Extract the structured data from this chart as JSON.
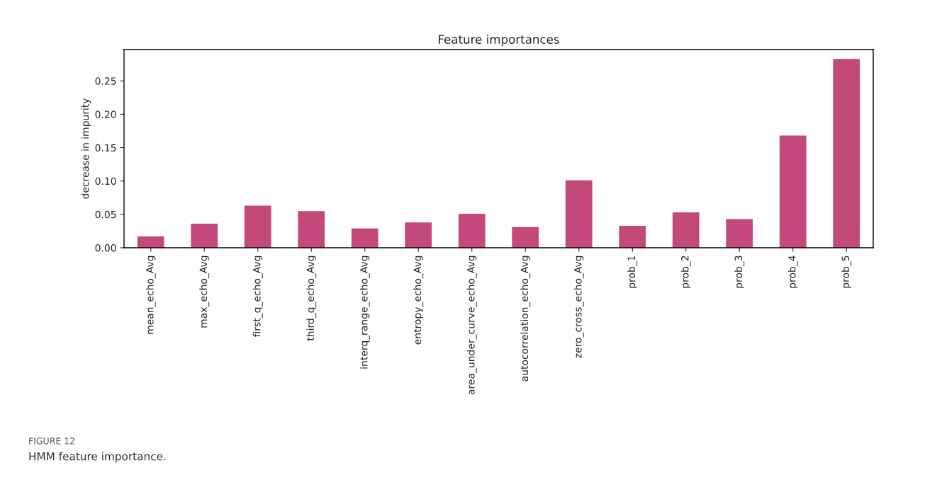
{
  "chart_data": {
    "type": "bar",
    "title": "Feature importances",
    "ylabel": "decrease in impurity",
    "categories": [
      "mean_echo_Avg",
      "max_echo_Avg",
      "first_q_echo_Avg",
      "third_q_echo_Avg",
      "interq_range_echo_Avg",
      "entropy_echo_Avg",
      "area_under_curve_echo_Avg",
      "autocorrelation_echo_Avg",
      "zero_cross_echo_Avg",
      "prob_1",
      "prob_2",
      "prob_3",
      "prob_4",
      "prob_5"
    ],
    "values": [
      0.017,
      0.036,
      0.063,
      0.055,
      0.029,
      0.038,
      0.051,
      0.031,
      0.101,
      0.033,
      0.053,
      0.043,
      0.168,
      0.283
    ],
    "color": "#c2497a",
    "ylim": [
      0,
      0.297
    ],
    "yticks": [
      {
        "value": 0,
        "label": "0.00"
      },
      {
        "value": 0.05,
        "label": "0.05"
      },
      {
        "value": 0.1,
        "label": "0.10"
      },
      {
        "value": 0.15,
        "label": "0.15"
      },
      {
        "value": 0.2,
        "label": "0.20"
      },
      {
        "value": 0.25,
        "label": "0.25"
      }
    ],
    "grid": false,
    "legend": false,
    "annotations": [
      "FIGURE 12",
      "HMM feature importance."
    ]
  }
}
